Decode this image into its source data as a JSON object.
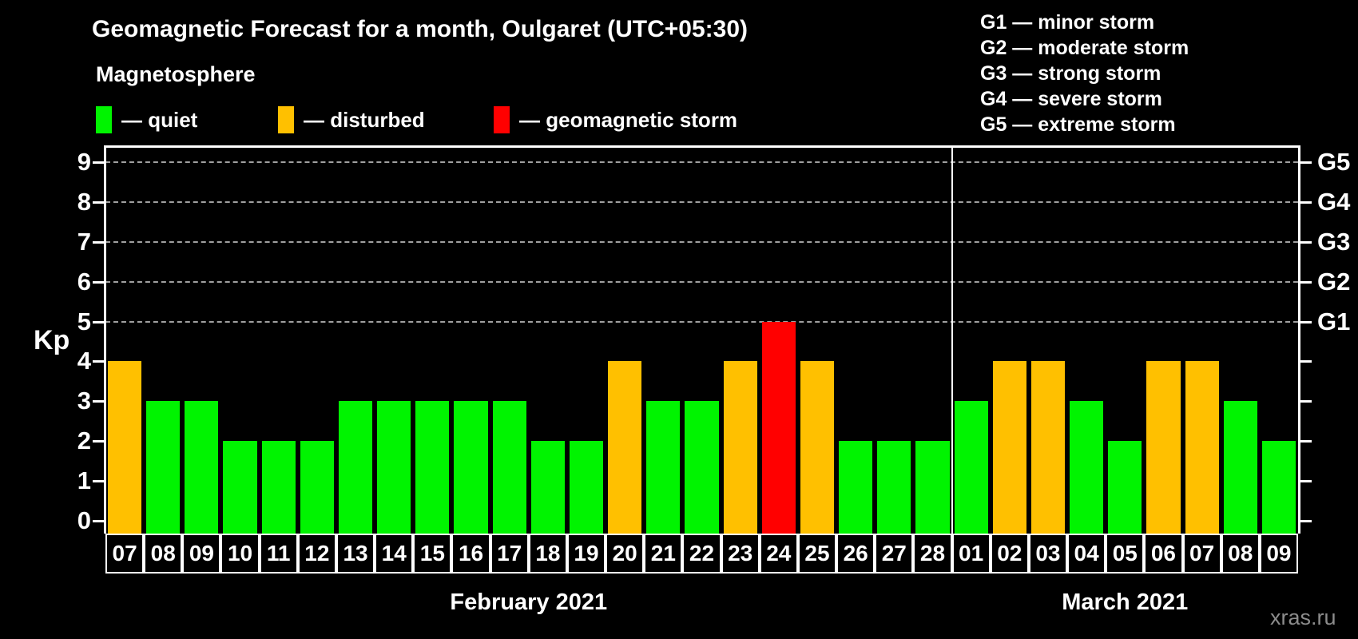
{
  "title": "Geomagnetic Forecast for a month, Oulgaret (UTC+05:30)",
  "subtitle": "Magnetosphere",
  "legend": {
    "items": [
      {
        "key": "quiet",
        "label": "— quiet",
        "color": "#00f400"
      },
      {
        "key": "disturbed",
        "label": "— disturbed",
        "color": "#ffc000"
      },
      {
        "key": "storm",
        "label": "— geomagnetic storm",
        "color": "#ff0000"
      }
    ]
  },
  "g_legend": [
    "G1 — minor storm",
    "G2 — moderate storm",
    "G3 — strong storm",
    "G4 — severe storm",
    "G5 — extreme storm"
  ],
  "kp_axis_label": "Kp",
  "watermark": "xras.ru",
  "chart_data": {
    "type": "bar",
    "title": "Geomagnetic Forecast for a month, Oulgaret (UTC+05:30)",
    "ylabel": "Kp",
    "ylim": [
      0,
      9
    ],
    "yticks": [
      0,
      1,
      2,
      3,
      4,
      5,
      6,
      7,
      8,
      9
    ],
    "gridlines": [
      5,
      6,
      7,
      8,
      9
    ],
    "grid_style": "dashed",
    "legend_position": "top-left",
    "right_axis_labels": [
      {
        "value": 5,
        "label": "G1"
      },
      {
        "value": 6,
        "label": "G2"
      },
      {
        "value": 7,
        "label": "G3"
      },
      {
        "value": 8,
        "label": "G4"
      },
      {
        "value": 9,
        "label": "G5"
      }
    ],
    "months": [
      {
        "label": "February 2021",
        "days": 22
      },
      {
        "label": "March 2021",
        "days": 9
      }
    ],
    "categories": [
      "07",
      "08",
      "09",
      "10",
      "11",
      "12",
      "13",
      "14",
      "15",
      "16",
      "17",
      "18",
      "19",
      "20",
      "21",
      "22",
      "23",
      "24",
      "25",
      "26",
      "27",
      "28",
      "01",
      "02",
      "03",
      "04",
      "05",
      "06",
      "07",
      "08",
      "09"
    ],
    "values": [
      4,
      3,
      3,
      2,
      2,
      2,
      3,
      3,
      3,
      3,
      3,
      2,
      2,
      4,
      3,
      3,
      4,
      5,
      4,
      2,
      2,
      2,
      3,
      4,
      4,
      3,
      2,
      4,
      4,
      3,
      2
    ],
    "statuses": [
      "disturbed",
      "quiet",
      "quiet",
      "quiet",
      "quiet",
      "quiet",
      "quiet",
      "quiet",
      "quiet",
      "quiet",
      "quiet",
      "quiet",
      "quiet",
      "disturbed",
      "quiet",
      "quiet",
      "disturbed",
      "storm",
      "disturbed",
      "quiet",
      "quiet",
      "quiet",
      "quiet",
      "disturbed",
      "disturbed",
      "quiet",
      "quiet",
      "disturbed",
      "disturbed",
      "quiet",
      "quiet"
    ],
    "status_colors": {
      "quiet": "#00f400",
      "disturbed": "#ffc000",
      "storm": "#ff0000"
    }
  }
}
